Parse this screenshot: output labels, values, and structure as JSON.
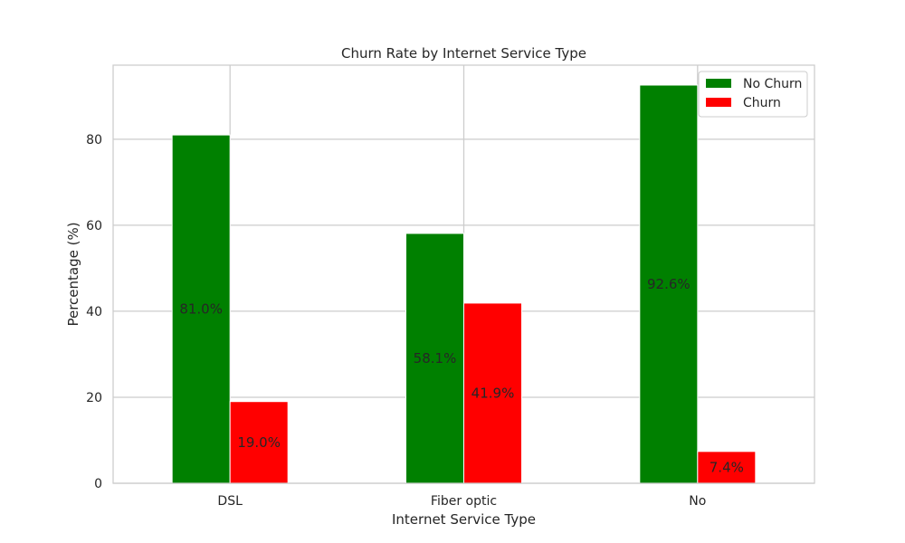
{
  "chart_data": {
    "type": "bar",
    "title": "Churn Rate by Internet Service Type",
    "xlabel": "Internet Service Type",
    "ylabel": "Percentage (%)",
    "categories": [
      "DSL",
      "Fiber optic",
      "No"
    ],
    "series": [
      {
        "name": "No Churn",
        "values": [
          81.0,
          58.1,
          92.6
        ],
        "color": "#008000",
        "labels": [
          "81.0%",
          "58.1%",
          "92.6%"
        ]
      },
      {
        "name": "Churn",
        "values": [
          19.0,
          41.9,
          7.4
        ],
        "color": "#ff0000",
        "labels": [
          "19.0%",
          "41.9%",
          "7.4%"
        ]
      }
    ],
    "ylim": [
      0,
      97.23
    ],
    "yticks": [
      0,
      20,
      40,
      60,
      80
    ],
    "grid": true,
    "legend": "top-right"
  }
}
